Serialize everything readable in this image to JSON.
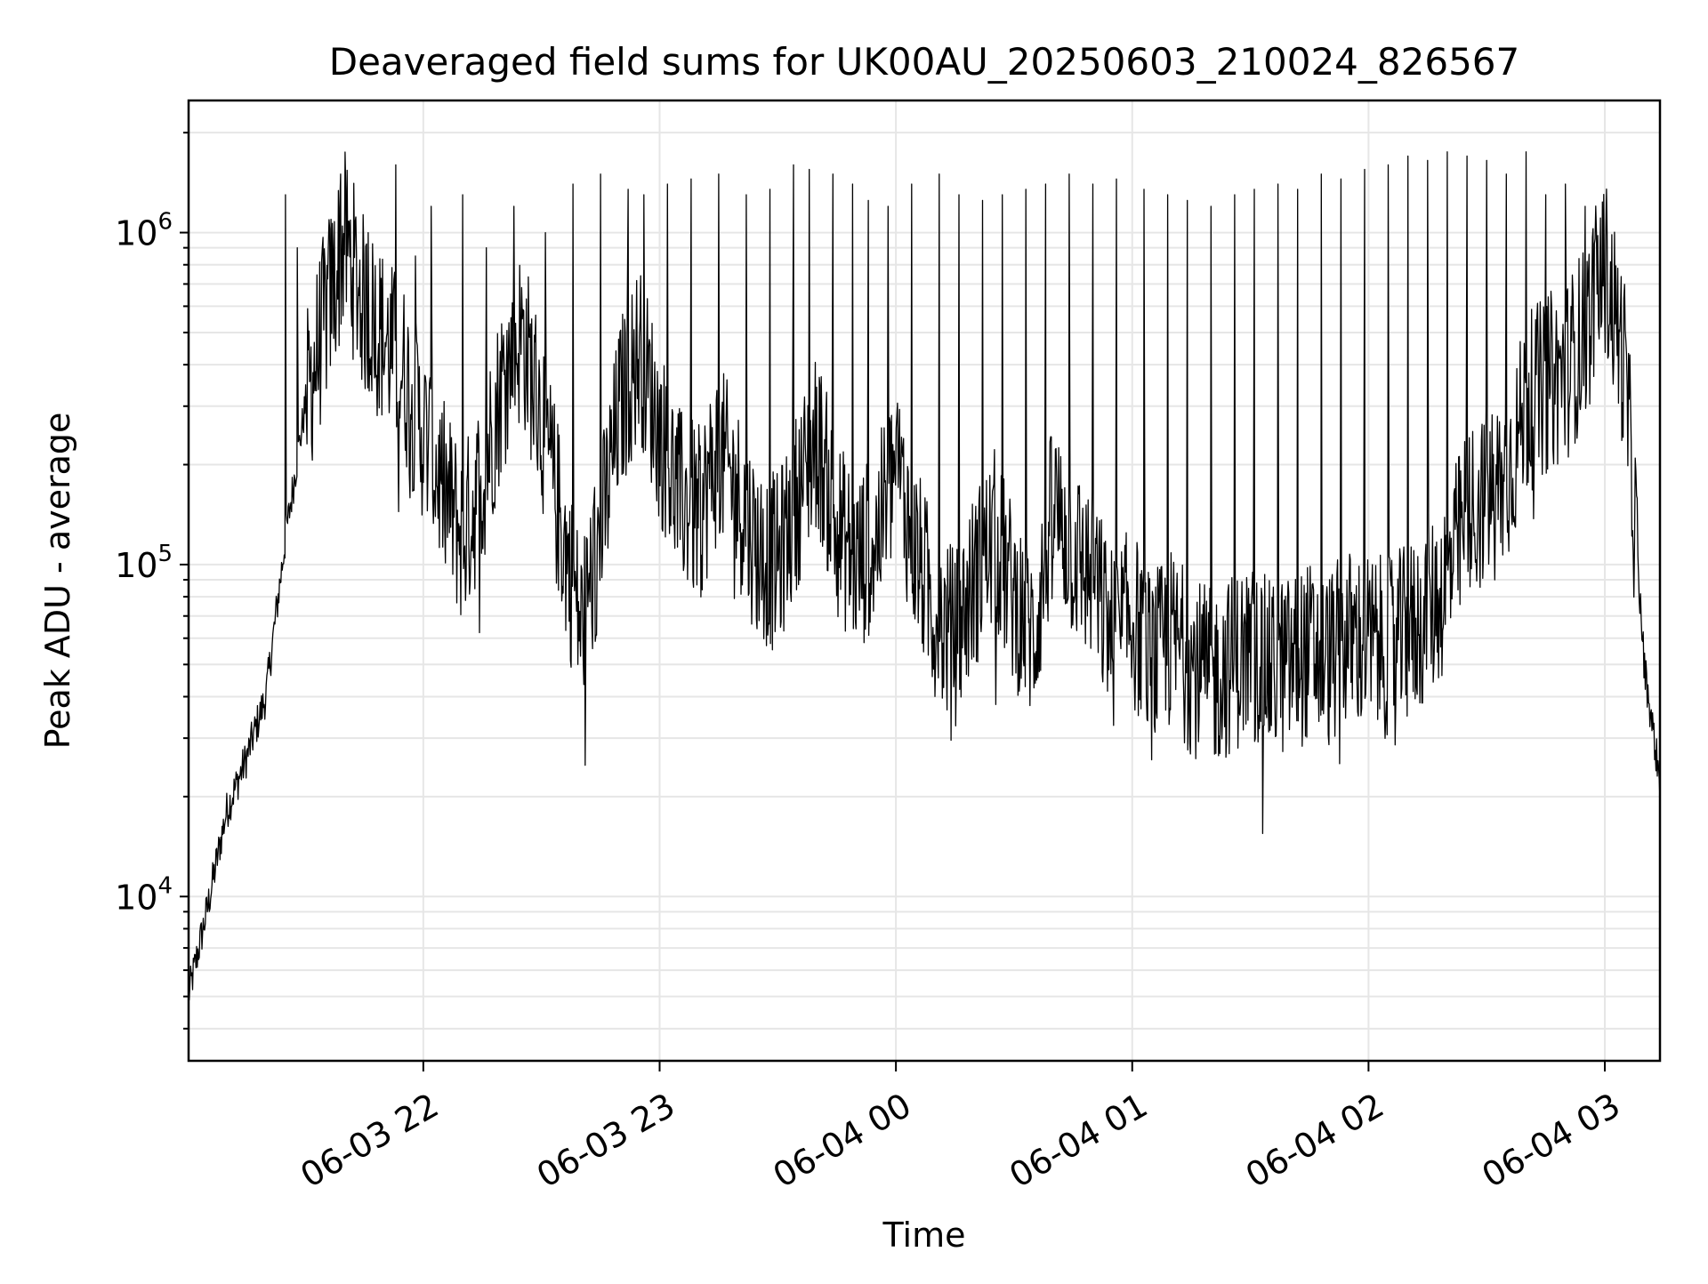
{
  "chart_data": {
    "type": "line",
    "title": "Deaveraged field sums for UK00AU_20250603_210024_826567",
    "xlabel": "Time",
    "ylabel": "Peak ADU - average",
    "yscale": "log",
    "grid": true,
    "line_color": "#000000",
    "x_range": [
      "2025-06-03 21:00:24",
      "2025-06-04 03:14:00"
    ],
    "y_range": [
      3200,
      2500000
    ],
    "x_ticks": [
      {
        "value": "2025-06-03 22:00",
        "label": "06-03 22"
      },
      {
        "value": "2025-06-03 23:00",
        "label": "06-03 23"
      },
      {
        "value": "2025-06-04 00:00",
        "label": "06-04 00"
      },
      {
        "value": "2025-06-04 01:00",
        "label": "06-04 01"
      },
      {
        "value": "2025-06-04 02:00",
        "label": "06-04 02"
      },
      {
        "value": "2025-06-04 03:00",
        "label": "06-04 03"
      }
    ],
    "y_ticks": [
      {
        "value": 10000,
        "base": "10",
        "exp": "4"
      },
      {
        "value": 100000,
        "base": "10",
        "exp": "5"
      },
      {
        "value": 1000000,
        "base": "10",
        "exp": "6"
      }
    ],
    "series": [
      {
        "x": [
          "2025-06-03 21:00",
          "2025-06-03 21:05",
          "2025-06-03 21:10",
          "2025-06-03 21:15",
          "2025-06-03 21:20",
          "2025-06-03 21:25",
          "2025-06-03 21:30",
          "2025-06-03 21:35",
          "2025-06-03 21:40",
          "2025-06-03 21:45",
          "2025-06-03 21:50",
          "2025-06-03 21:55",
          "2025-06-03 22:00",
          "2025-06-03 22:05",
          "2025-06-03 22:10",
          "2025-06-03 22:15",
          "2025-06-03 22:20",
          "2025-06-03 22:25",
          "2025-06-03 22:30",
          "2025-06-03 22:35",
          "2025-06-03 22:40",
          "2025-06-03 22:45",
          "2025-06-03 22:50",
          "2025-06-03 22:55",
          "2025-06-03 23:00",
          "2025-06-03 23:05",
          "2025-06-03 23:10",
          "2025-06-03 23:15",
          "2025-06-03 23:20",
          "2025-06-03 23:25",
          "2025-06-03 23:30",
          "2025-06-03 23:35",
          "2025-06-03 23:40",
          "2025-06-03 23:45",
          "2025-06-03 23:50",
          "2025-06-03 23:55",
          "2025-06-04 00:00",
          "2025-06-04 00:05",
          "2025-06-04 00:10",
          "2025-06-04 00:15",
          "2025-06-04 00:20",
          "2025-06-04 00:25",
          "2025-06-04 00:30",
          "2025-06-04 00:35",
          "2025-06-04 00:40",
          "2025-06-04 00:45",
          "2025-06-04 00:50",
          "2025-06-04 00:55",
          "2025-06-04 01:00",
          "2025-06-04 01:05",
          "2025-06-04 01:10",
          "2025-06-04 01:15",
          "2025-06-04 01:20",
          "2025-06-04 01:25",
          "2025-06-04 01:30",
          "2025-06-04 01:35",
          "2025-06-04 01:40",
          "2025-06-04 01:45",
          "2025-06-04 01:50",
          "2025-06-04 01:55",
          "2025-06-04 02:00",
          "2025-06-04 02:05",
          "2025-06-04 02:10",
          "2025-06-04 02:15",
          "2025-06-04 02:20",
          "2025-06-04 02:25",
          "2025-06-04 02:30",
          "2025-06-04 02:35",
          "2025-06-04 02:40",
          "2025-06-04 02:45",
          "2025-06-04 02:50",
          "2025-06-04 02:55",
          "2025-06-04 03:00",
          "2025-06-04 03:05",
          "2025-06-04 03:10",
          "2025-06-04 03:14"
        ],
        "y": [
          4800,
          9000,
          18000,
          26000,
          40000,
          120000,
          300000,
          550000,
          950000,
          600000,
          480000,
          380000,
          250000,
          170000,
          120000,
          180000,
          350000,
          500000,
          280000,
          130000,
          65000,
          120000,
          300000,
          450000,
          250000,
          160000,
          140000,
          220000,
          160000,
          110000,
          100000,
          160000,
          240000,
          130000,
          100000,
          120000,
          200000,
          110000,
          70000,
          60000,
          90000,
          120000,
          80000,
          60000,
          150000,
          110000,
          90000,
          60000,
          70000,
          50000,
          60000,
          50000,
          45000,
          50000,
          55000,
          48000,
          50000,
          55000,
          52000,
          60000,
          58000,
          56000,
          62000,
          70000,
          90000,
          140000,
          160000,
          180000,
          300000,
          350000,
          380000,
          500000,
          800000,
          400000,
          50000,
          22000
        ]
      }
    ],
    "spikes": {
      "x": [
        "2025-06-03 21:25",
        "2025-06-03 21:28",
        "2025-06-03 21:39",
        "2025-06-03 21:46",
        "2025-06-03 21:53",
        "2025-06-03 21:58",
        "2025-06-03 22:02",
        "2025-06-03 22:10",
        "2025-06-03 22:16",
        "2025-06-03 22:23",
        "2025-06-03 22:31",
        "2025-06-03 22:38",
        "2025-06-03 22:45",
        "2025-06-03 22:52",
        "2025-06-03 22:56",
        "2025-06-03 23:02",
        "2025-06-03 23:08",
        "2025-06-03 23:15",
        "2025-06-03 23:22",
        "2025-06-03 23:28",
        "2025-06-03 23:34",
        "2025-06-03 23:38",
        "2025-06-03 23:44",
        "2025-06-03 23:49",
        "2025-06-03 23:53",
        "2025-06-03 23:58",
        "2025-06-04 00:04",
        "2025-06-04 00:11",
        "2025-06-04 00:16",
        "2025-06-04 00:22",
        "2025-06-04 00:27",
        "2025-06-04 00:33",
        "2025-06-04 00:38",
        "2025-06-04 00:44",
        "2025-06-04 00:50",
        "2025-06-04 00:56",
        "2025-06-04 01:03",
        "2025-06-04 01:09",
        "2025-06-04 01:14",
        "2025-06-04 01:20",
        "2025-06-04 01:26",
        "2025-06-04 01:31",
        "2025-06-04 01:37",
        "2025-06-04 01:42",
        "2025-06-04 01:48",
        "2025-06-04 01:53",
        "2025-06-04 01:59",
        "2025-06-04 02:05",
        "2025-06-04 02:10",
        "2025-06-04 02:15",
        "2025-06-04 02:20",
        "2025-06-04 02:25",
        "2025-06-04 02:30",
        "2025-06-04 02:35",
        "2025-06-04 02:40",
        "2025-06-04 02:45",
        "2025-06-04 02:50",
        "2025-06-04 02:55"
      ],
      "y": [
        1300000,
        900000,
        1500000,
        1000000,
        1600000,
        850000,
        1200000,
        1300000,
        900000,
        1200000,
        1000000,
        1400000,
        1500000,
        1350000,
        1300000,
        1400000,
        1450000,
        1500000,
        1300000,
        1350000,
        1600000,
        1550000,
        1500000,
        1400000,
        1250000,
        1200000,
        1400000,
        1500000,
        1300000,
        1250000,
        1300000,
        1350000,
        1400000,
        1500000,
        1400000,
        1450000,
        1350000,
        1300000,
        1250000,
        1200000,
        1300000,
        1350000,
        1400000,
        1350000,
        1500000,
        1450000,
        1550000,
        1600000,
        1700000,
        1650000,
        1750000,
        1700000,
        1650000,
        1500000,
        1750000,
        1300000,
        1400000,
        1200000
      ]
    }
  }
}
